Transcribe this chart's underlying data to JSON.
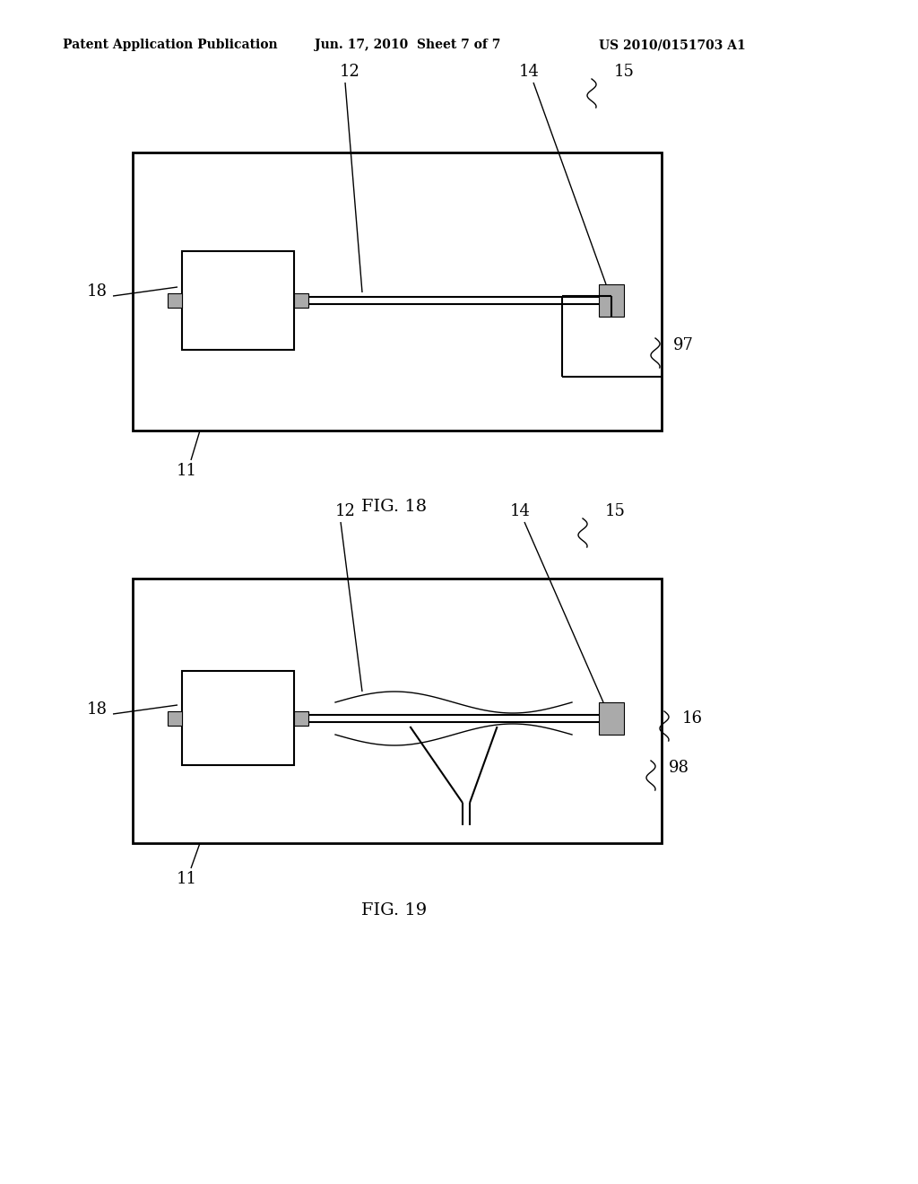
{
  "background_color": "#ffffff",
  "header_left": "Patent Application Publication",
  "header_center": "Jun. 17, 2010  Sheet 7 of 7",
  "header_right": "US 2010/0151703 A1",
  "fig18_caption": "FIG. 18",
  "fig19_caption": "FIG. 19",
  "line_color": "#000000",
  "gray_fill": "#aaaaaa",
  "white_fill": "#ffffff",
  "lw_outer": 2.0,
  "lw_inner": 1.5,
  "lw_thin": 1.0
}
